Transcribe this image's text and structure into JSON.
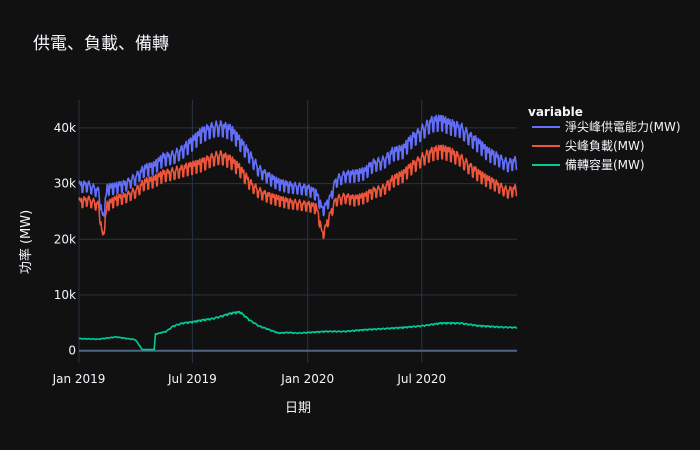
{
  "chart_data": {
    "type": "line",
    "title": "供電、負載、備轉",
    "xlabel": "日期",
    "ylabel": "功率 (MW)",
    "x_range": [
      "2019-01-01",
      "2020-11-30"
    ],
    "ylim": [
      -2200,
      45000
    ],
    "x_ticks": [
      {
        "date": "2019-01-01",
        "label": "Jan 2019"
      },
      {
        "date": "2019-07-01",
        "label": "Jul 2019"
      },
      {
        "date": "2020-01-01",
        "label": "Jan 2020"
      },
      {
        "date": "2020-07-01",
        "label": "Jul 2020"
      }
    ],
    "y_ticks": [
      {
        "value": 0,
        "label": "0"
      },
      {
        "value": 10000,
        "label": "10k"
      },
      {
        "value": 20000,
        "label": "20k"
      },
      {
        "value": 30000,
        "label": "30k"
      },
      {
        "value": 40000,
        "label": "40k"
      }
    ],
    "grid": true,
    "legend": {
      "title": "variable",
      "placement": "right"
    },
    "series": [
      {
        "name": "淨尖峰供電能力(MW)",
        "color": "#636efa",
        "x": [
          "2019-01-01",
          "2019-01-15",
          "2019-02-01",
          "2019-02-08",
          "2019-02-15",
          "2019-03-01",
          "2019-03-15",
          "2019-04-01",
          "2019-04-15",
          "2019-05-01",
          "2019-05-15",
          "2019-06-01",
          "2019-06-15",
          "2019-07-01",
          "2019-07-15",
          "2019-08-01",
          "2019-08-15",
          "2019-09-01",
          "2019-09-15",
          "2019-10-01",
          "2019-10-15",
          "2019-11-01",
          "2019-11-15",
          "2019-12-01",
          "2019-12-15",
          "2020-01-01",
          "2020-01-15",
          "2020-01-25",
          "2020-02-05",
          "2020-02-15",
          "2020-03-01",
          "2020-03-15",
          "2020-04-01",
          "2020-04-15",
          "2020-05-01",
          "2020-05-15",
          "2020-06-01",
          "2020-06-15",
          "2020-07-01",
          "2020-07-15",
          "2020-08-01",
          "2020-08-15",
          "2020-09-01",
          "2020-09-15",
          "2020-10-01",
          "2020-10-15",
          "2020-11-01",
          "2020-11-15",
          "2020-11-30"
        ],
        "y": [
          30000,
          30200,
          29000,
          24000,
          29500,
          29800,
          30200,
          31500,
          33000,
          33500,
          35000,
          35500,
          36500,
          38000,
          39500,
          40500,
          40800,
          40000,
          38000,
          35500,
          33000,
          31500,
          30500,
          30000,
          29800,
          29500,
          28500,
          25500,
          27500,
          31000,
          32000,
          32000,
          32500,
          34000,
          34500,
          36000,
          36500,
          38500,
          40000,
          41500,
          41800,
          41000,
          40500,
          39000,
          37500,
          36000,
          35000,
          34000,
          34500
        ]
      },
      {
        "name": "尖峰負載(MW)",
        "color": "#ef553b",
        "x": [
          "2019-01-01",
          "2019-01-15",
          "2019-02-01",
          "2019-02-08",
          "2019-02-15",
          "2019-03-01",
          "2019-03-15",
          "2019-04-01",
          "2019-04-15",
          "2019-05-01",
          "2019-05-15",
          "2019-06-01",
          "2019-06-15",
          "2019-07-01",
          "2019-07-15",
          "2019-08-01",
          "2019-08-15",
          "2019-09-01",
          "2019-09-15",
          "2019-10-01",
          "2019-10-15",
          "2019-11-01",
          "2019-11-15",
          "2019-12-01",
          "2019-12-15",
          "2020-01-01",
          "2020-01-15",
          "2020-01-25",
          "2020-02-05",
          "2020-02-15",
          "2020-03-01",
          "2020-03-15",
          "2020-04-01",
          "2020-04-15",
          "2020-05-01",
          "2020-05-15",
          "2020-06-01",
          "2020-06-15",
          "2020-07-01",
          "2020-07-15",
          "2020-08-01",
          "2020-08-15",
          "2020-09-01",
          "2020-09-15",
          "2020-10-01",
          "2020-10-15",
          "2020-11-01",
          "2020-11-15",
          "2020-11-30"
        ],
        "y": [
          27000,
          27500,
          26500,
          20500,
          26500,
          27500,
          28000,
          29000,
          30500,
          31000,
          32000,
          32500,
          33000,
          33500,
          34000,
          35000,
          35500,
          34500,
          33000,
          30500,
          29000,
          28000,
          27500,
          27000,
          26800,
          26500,
          26000,
          21000,
          24500,
          27500,
          28000,
          27500,
          28000,
          29000,
          29500,
          31000,
          32000,
          33500,
          35000,
          36000,
          36500,
          36000,
          35000,
          33500,
          32000,
          31000,
          30000,
          29000,
          29500
        ]
      },
      {
        "name": "備轉容量(MW)",
        "color": "#00cc96",
        "x": [
          "2019-01-01",
          "2019-02-01",
          "2019-03-01",
          "2019-04-01",
          "2019-04-12",
          "2019-05-01",
          "2019-05-03",
          "2019-05-20",
          "2019-06-01",
          "2019-06-15",
          "2019-07-01",
          "2019-07-15",
          "2019-08-01",
          "2019-08-15",
          "2019-09-01",
          "2019-09-15",
          "2019-10-01",
          "2019-10-15",
          "2019-11-01",
          "2019-11-15",
          "2019-12-01",
          "2019-12-15",
          "2020-01-01",
          "2020-02-01",
          "2020-03-01",
          "2020-04-01",
          "2020-05-01",
          "2020-06-01",
          "2020-07-01",
          "2020-08-01",
          "2020-09-01",
          "2020-10-01",
          "2020-11-01",
          "2020-11-30"
        ],
        "y": [
          2200,
          2100,
          2500,
          2000,
          200,
          200,
          3000,
          3500,
          4500,
          5000,
          5200,
          5500,
          5800,
          6200,
          6800,
          7000,
          5500,
          4500,
          3800,
          3200,
          3300,
          3200,
          3300,
          3500,
          3500,
          3800,
          4000,
          4200,
          4500,
          5000,
          5000,
          4500,
          4300,
          4200
        ]
      }
    ]
  }
}
